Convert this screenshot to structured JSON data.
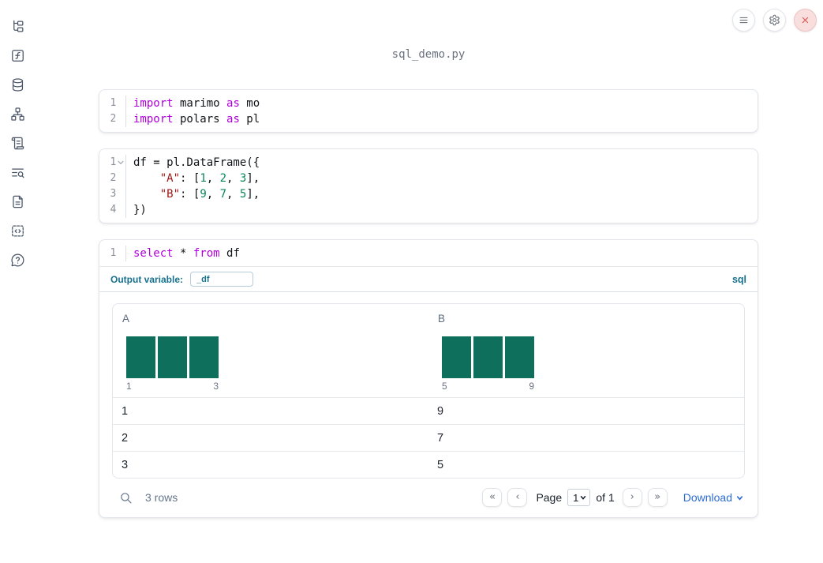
{
  "app": {
    "title": "sql_demo.py"
  },
  "colors": {
    "histogram_bar": "#0e6f5c",
    "sql_accent": "#17708e",
    "link": "#2b6cd4",
    "keyword": "#af00db",
    "string": "#a31515",
    "number": "#098658"
  },
  "sidebar": {
    "items": [
      {
        "icon": "file-tree"
      },
      {
        "icon": "function"
      },
      {
        "icon": "database"
      },
      {
        "icon": "network"
      },
      {
        "icon": "scroll"
      },
      {
        "icon": "list-search"
      },
      {
        "icon": "document"
      },
      {
        "icon": "snippet"
      },
      {
        "icon": "help"
      }
    ]
  },
  "window_controls": {
    "menu": "menu",
    "settings": "settings",
    "close": "close"
  },
  "cells": [
    {
      "type": "python",
      "lines": [
        {
          "n": "1",
          "tokens": [
            {
              "t": "kw",
              "v": "import"
            },
            {
              "t": "pl",
              "v": " marimo "
            },
            {
              "t": "kw",
              "v": "as"
            },
            {
              "t": "pl",
              "v": " mo"
            }
          ]
        },
        {
          "n": "2",
          "tokens": [
            {
              "t": "kw",
              "v": "import"
            },
            {
              "t": "pl",
              "v": " polars "
            },
            {
              "t": "kw",
              "v": "as"
            },
            {
              "t": "pl",
              "v": " pl"
            }
          ]
        }
      ]
    },
    {
      "type": "python",
      "lines": [
        {
          "n": "1",
          "fold": true,
          "tokens": [
            {
              "t": "pl",
              "v": "df = pl.DataFrame({"
            }
          ]
        },
        {
          "n": "2",
          "tokens": [
            {
              "t": "pl",
              "v": "    "
            },
            {
              "t": "str",
              "v": "\"A\""
            },
            {
              "t": "pl",
              "v": ": ["
            },
            {
              "t": "num",
              "v": "1"
            },
            {
              "t": "pl",
              "v": ", "
            },
            {
              "t": "num",
              "v": "2"
            },
            {
              "t": "pl",
              "v": ", "
            },
            {
              "t": "num",
              "v": "3"
            },
            {
              "t": "pl",
              "v": "],"
            }
          ]
        },
        {
          "n": "3",
          "tokens": [
            {
              "t": "pl",
              "v": "    "
            },
            {
              "t": "str",
              "v": "\"B\""
            },
            {
              "t": "pl",
              "v": ": ["
            },
            {
              "t": "num",
              "v": "9"
            },
            {
              "t": "pl",
              "v": ", "
            },
            {
              "t": "num",
              "v": "7"
            },
            {
              "t": "pl",
              "v": ", "
            },
            {
              "t": "num",
              "v": "5"
            },
            {
              "t": "pl",
              "v": "],"
            }
          ]
        },
        {
          "n": "4",
          "tokens": [
            {
              "t": "pl",
              "v": "})"
            }
          ]
        }
      ]
    },
    {
      "type": "sql",
      "lines": [
        {
          "n": "1",
          "tokens": [
            {
              "t": "kw",
              "v": "select"
            },
            {
              "t": "pl",
              "v": " * "
            },
            {
              "t": "kw",
              "v": "from"
            },
            {
              "t": "pl",
              "v": " df"
            }
          ]
        }
      ],
      "output_variable_label": "Output variable:",
      "output_variable_value": "_df",
      "language_badge": "sql"
    }
  ],
  "table": {
    "columns": [
      {
        "name": "A",
        "hist": {
          "bars": [
            1,
            1,
            1
          ],
          "min_label": "1",
          "max_label": "3"
        }
      },
      {
        "name": "B",
        "hist": {
          "bars": [
            1,
            1,
            1
          ],
          "min_label": "5",
          "max_label": "9"
        }
      }
    ],
    "rows": [
      [
        "1",
        "9"
      ],
      [
        "2",
        "7"
      ],
      [
        "3",
        "5"
      ]
    ],
    "footer": {
      "row_count_label": "3 rows",
      "page_label": "Page",
      "page_value": "1",
      "of_label": "of 1",
      "download_label": "Download",
      "pagination_icons": {
        "first": "«",
        "prev": "‹",
        "next": "›",
        "last": "»"
      }
    }
  }
}
